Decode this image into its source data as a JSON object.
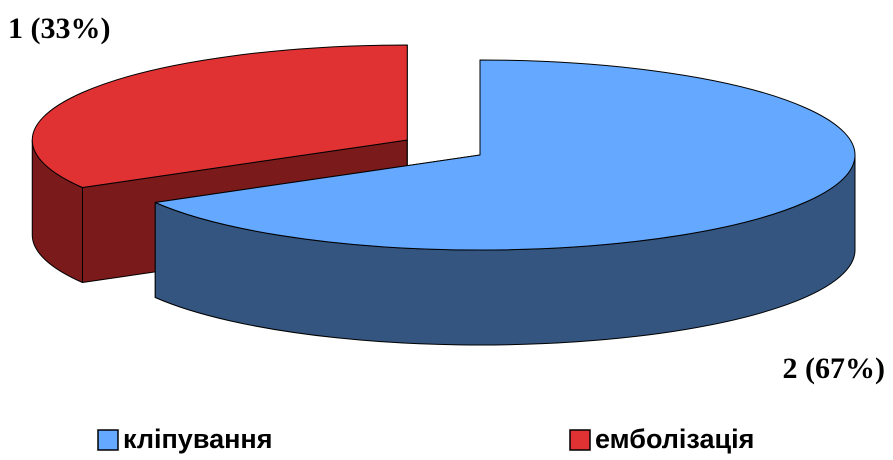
{
  "chart_data": {
    "type": "pie3d",
    "categories": [
      "кліпування",
      "емболізація"
    ],
    "values": [
      2,
      1
    ],
    "value_labels": [
      "2 (67%)",
      "1 (33%)"
    ],
    "colors": [
      "#64a8ff",
      "#e03232"
    ],
    "side_colors": [
      "#335580",
      "#7a1a1a"
    ],
    "legend": "bottom"
  }
}
